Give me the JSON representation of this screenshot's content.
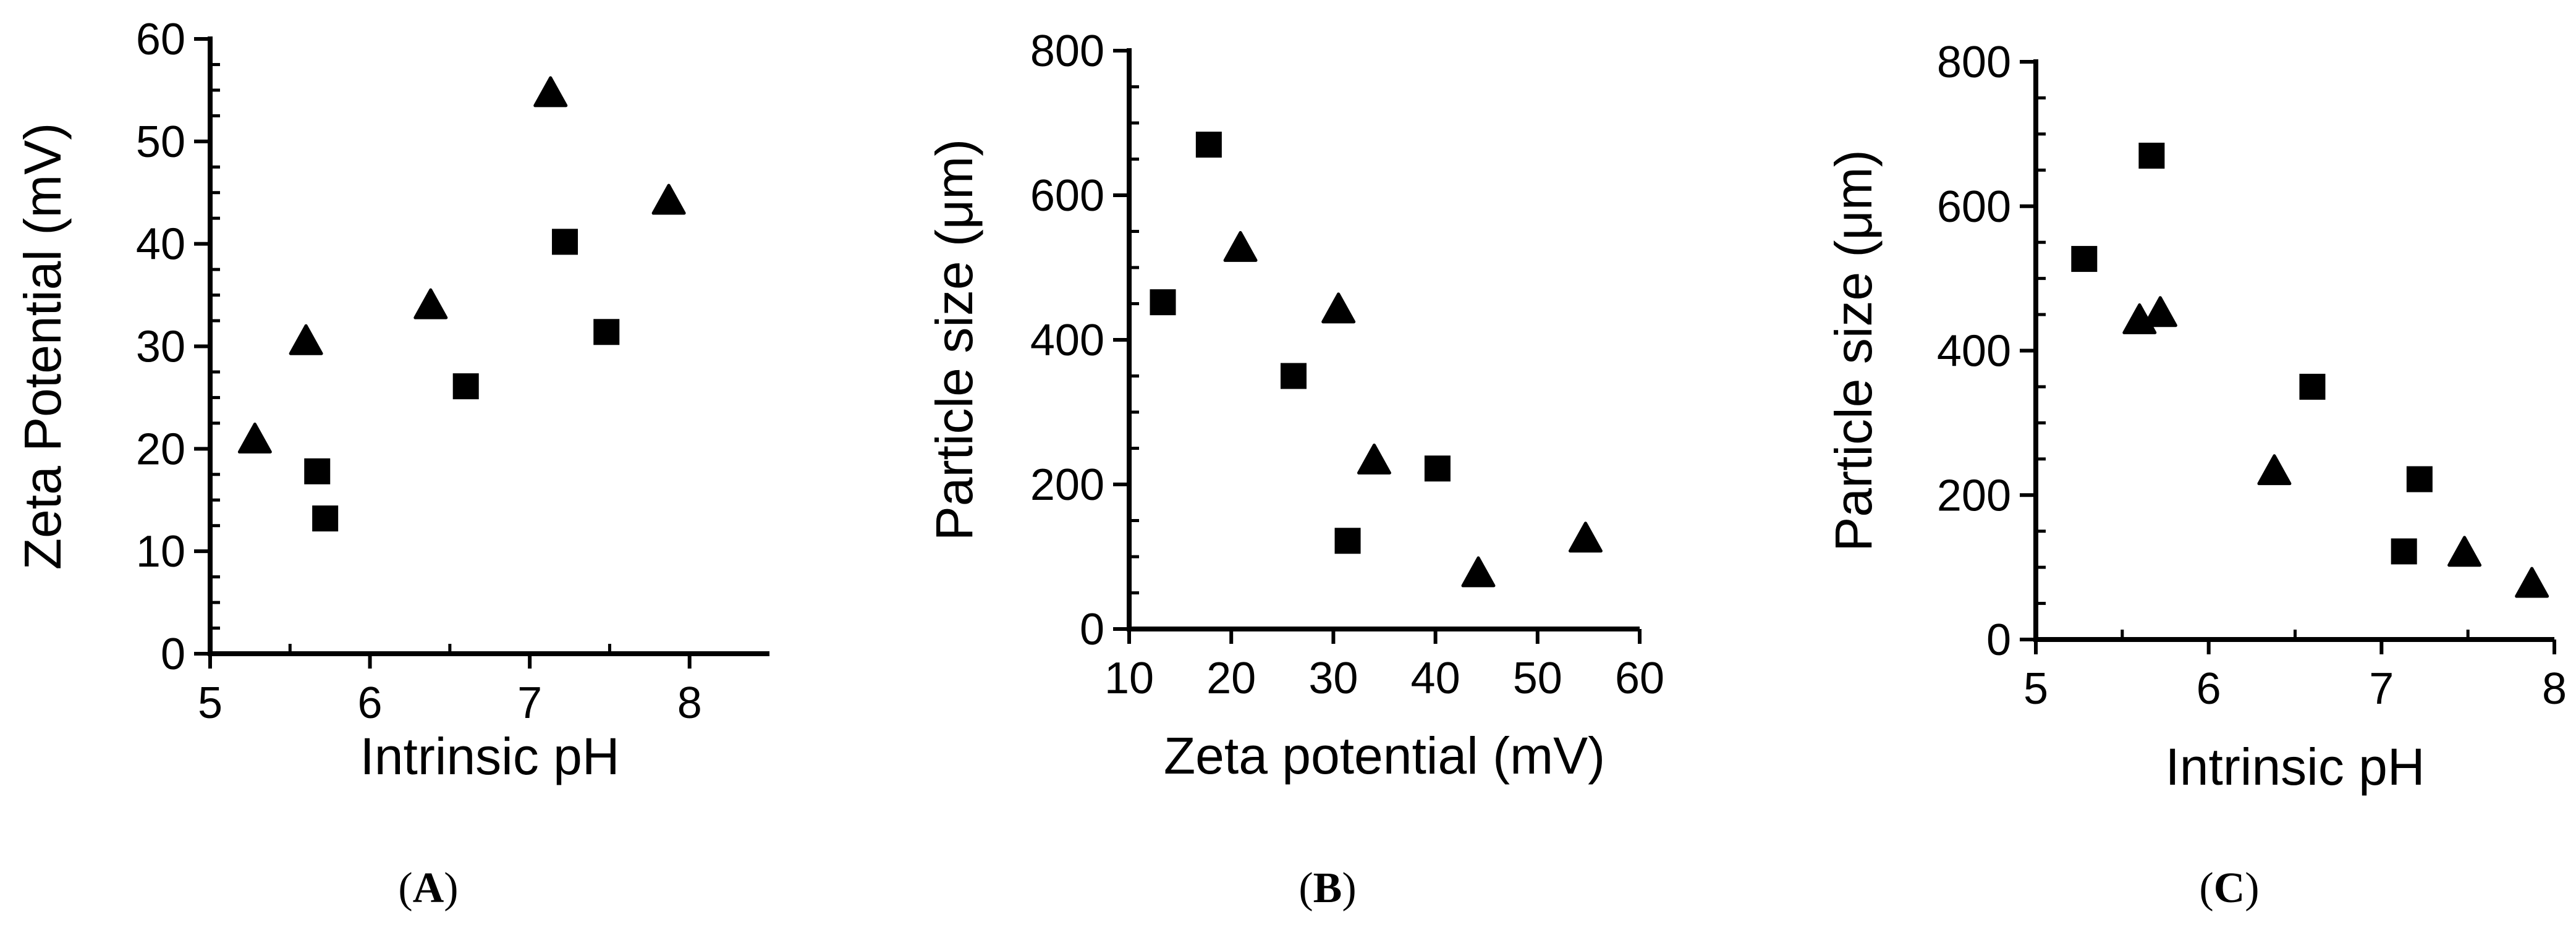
{
  "chart_data": [
    {
      "panel": "A",
      "panel_label": {
        "open": "(",
        "letter": "A",
        "close": ")"
      },
      "type": "scatter",
      "xlabel": "Intrinsic pH",
      "ylabel": "Zeta Potential (mV)",
      "xlim": [
        5,
        8.5
      ],
      "ylim": [
        0,
        60
      ],
      "xticks": [
        5,
        6,
        7,
        8
      ],
      "yticks": [
        0,
        10,
        20,
        30,
        40,
        50,
        60
      ],
      "series": [
        {
          "marker": "square",
          "points": [
            [
              5.67,
              17.8
            ],
            [
              5.72,
              13.2
            ],
            [
              6.6,
              26.1
            ],
            [
              7.22,
              40.2
            ],
            [
              7.48,
              31.4
            ]
          ]
        },
        {
          "marker": "triangle",
          "points": [
            [
              5.28,
              20.9
            ],
            [
              5.6,
              30.5
            ],
            [
              6.38,
              34.0
            ],
            [
              7.13,
              54.7
            ],
            [
              7.87,
              44.2
            ]
          ]
        }
      ]
    },
    {
      "panel": "B",
      "panel_label": {
        "open": "(",
        "letter": "B",
        "close": ")"
      },
      "type": "scatter",
      "xlabel": "Zeta potential (mV)",
      "ylabel": "Particle size (μm)",
      "xlim": [
        10,
        60
      ],
      "ylim": [
        0,
        800
      ],
      "xticks": [
        10,
        20,
        30,
        40,
        50,
        60
      ],
      "yticks": [
        0,
        200,
        400,
        600,
        800
      ],
      "series": [
        {
          "marker": "square",
          "points": [
            [
              13.3,
              452
            ],
            [
              17.8,
              670
            ],
            [
              26.1,
              350
            ],
            [
              31.4,
              122
            ],
            [
              40.2,
              222
            ]
          ]
        },
        {
          "marker": "triangle",
          "points": [
            [
              20.9,
              527
            ],
            [
              30.5,
              442
            ],
            [
              34.0,
              233
            ],
            [
              44.2,
              77
            ],
            [
              54.7,
              125
            ]
          ]
        }
      ]
    },
    {
      "panel": "C",
      "panel_label": {
        "open": "(",
        "letter": "C",
        "close": ")"
      },
      "type": "scatter",
      "xlabel": "Intrinsic pH",
      "ylabel": "Particle size (μm)",
      "xlim": [
        5,
        8
      ],
      "ylim": [
        0,
        800
      ],
      "xticks": [
        5,
        6,
        7,
        8
      ],
      "yticks": [
        0,
        200,
        400,
        600,
        800
      ],
      "series": [
        {
          "marker": "square",
          "points": [
            [
              5.28,
              527
            ],
            [
              5.67,
              670
            ],
            [
              6.6,
              350
            ],
            [
              7.13,
              122
            ],
            [
              7.22,
              222
            ]
          ]
        },
        {
          "marker": "triangle",
          "points": [
            [
              5.6,
              442
            ],
            [
              5.72,
              452
            ],
            [
              6.38,
              233
            ],
            [
              7.48,
              120
            ],
            [
              7.87,
              77
            ]
          ]
        }
      ]
    }
  ],
  "colors": {
    "ink": "#000000",
    "background": "#ffffff"
  }
}
